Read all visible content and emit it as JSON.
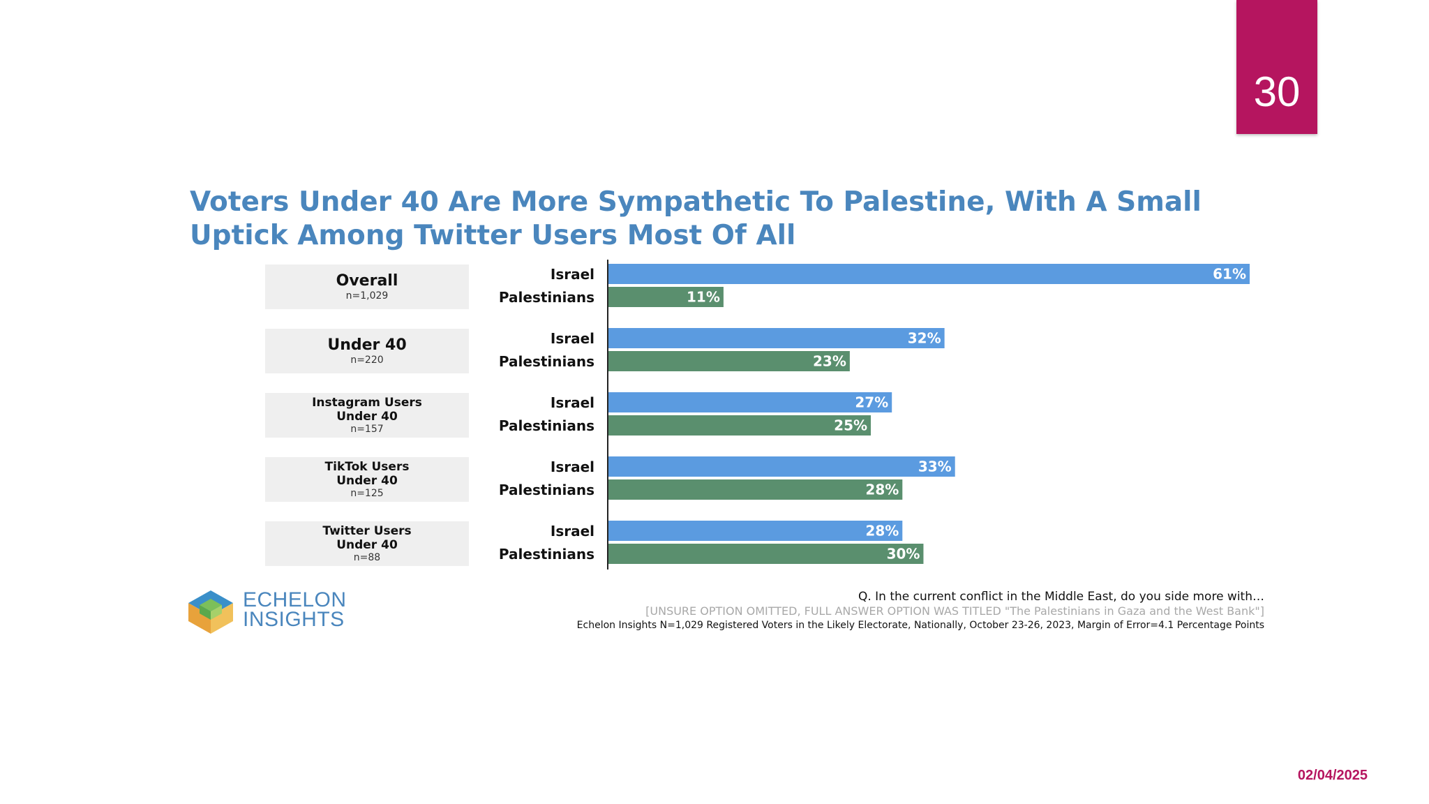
{
  "page_number": "30",
  "footer_date": "02/04/2025",
  "logo": {
    "line1": "ECHELON",
    "line2": "INSIGHTS"
  },
  "footnotes": {
    "question": "Q. In the current conflict in the Middle East, do you side more with…",
    "note": "[UNSURE OPTION OMITTED, FULL ANSWER OPTION WAS TITLED \"The Palestinians in Gaza and the West Bank\"]",
    "source": "Echelon Insights N=1,029 Registered Voters in the Likely Electorate, Nationally, October 23-26, 2023, Margin of Error=4.1 Percentage Points"
  },
  "colors": {
    "israel": "#5b9be0",
    "palestinians": "#5a8f6e",
    "title": "#4a86bd",
    "accent": "#b5155f"
  },
  "chart_data": {
    "type": "bar",
    "orientation": "horizontal",
    "title": "Voters Under 40 Are More Sympathetic To Palestine, With A Small Uptick Among Twitter Users Most Of All",
    "value_suffix": "%",
    "xlim": [
      0,
      61
    ],
    "groups": [
      {
        "name_lines": [
          "Overall"
        ],
        "n": "n=1,029",
        "israel": 61,
        "palestinians": 11
      },
      {
        "name_lines": [
          "Under 40"
        ],
        "n": "n=220",
        "israel": 32,
        "palestinians": 23
      },
      {
        "name_lines": [
          "Instagram Users",
          "Under 40"
        ],
        "n": "n=157",
        "israel": 27,
        "palestinians": 25
      },
      {
        "name_lines": [
          "TikTok Users",
          "Under 40"
        ],
        "n": "n=125",
        "israel": 33,
        "palestinians": 28
      },
      {
        "name_lines": [
          "Twitter Users",
          "Under 40"
        ],
        "n": "n=88",
        "israel": 28,
        "palestinians": 30
      }
    ],
    "series": [
      {
        "key": "israel",
        "name": "Israel"
      },
      {
        "key": "palestinians",
        "name": "Palestinians"
      }
    ]
  }
}
